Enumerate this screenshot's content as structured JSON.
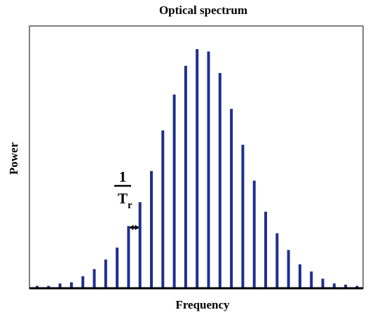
{
  "chart_data": {
    "type": "bar",
    "title": "Optical spectrum",
    "xlabel": "Frequency",
    "ylabel": "Power",
    "ylim": [
      0,
      1
    ],
    "grid": false,
    "legend": "none",
    "colors": {
      "bars": "#1f2f8f",
      "axis": "#000000",
      "arrow": "#000000"
    },
    "series": [
      {
        "values": [
          0.01,
          0.01,
          0.02,
          0.025,
          0.05,
          0.08,
          0.12,
          0.17,
          0.26,
          0.36,
          0.49,
          0.66,
          0.81,
          0.93,
          1.0,
          0.99,
          0.9,
          0.75,
          0.6,
          0.45,
          0.32,
          0.23,
          0.16,
          0.1,
          0.07,
          0.04,
          0.02,
          0.015,
          0.01
        ]
      }
    ],
    "annotation": {
      "numerator": "1",
      "denominator": "T",
      "subscript": "r",
      "between_bars": [
        8,
        9
      ]
    }
  }
}
